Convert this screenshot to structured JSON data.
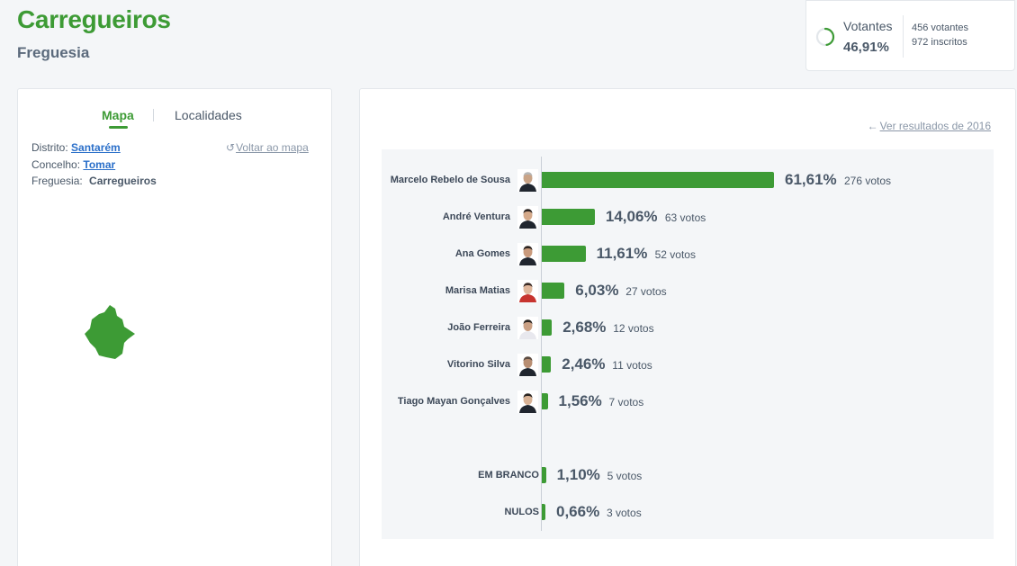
{
  "header": {
    "title": "Carregueiros",
    "subtitle": "Freguesia"
  },
  "turnout": {
    "label": "Votantes",
    "percent": "46,91%",
    "percent_value": 46.91,
    "voters": "456 votantes",
    "registered": "972 inscritos",
    "accent": "#3d9b35"
  },
  "map_panel": {
    "tabs": [
      "Mapa",
      "Localidades"
    ],
    "active_tab": "Mapa",
    "district_label": "Distrito:",
    "district": "Santarém",
    "municipality_label": "Concelho:",
    "municipality": "Tomar",
    "parish_label": "Freguesia:",
    "parish": "Carregueiros",
    "back_link": "Voltar ao mapa",
    "back_icon": "undo-icon",
    "map_color": "#3d9b35"
  },
  "results": {
    "previous_link": "Ver resultados de 2016",
    "previous_icon": "arrow-left-icon",
    "bar_color": "#3d9b35"
  },
  "chart_data": {
    "type": "bar",
    "orientation": "horizontal",
    "candidates": [
      {
        "name": "Marcelo Rebelo de Sousa",
        "percent": 61.61,
        "percent_label": "61,61%",
        "votes_label": "276 votos"
      },
      {
        "name": "André Ventura",
        "percent": 14.06,
        "percent_label": "14,06%",
        "votes_label": "63 votos"
      },
      {
        "name": "Ana Gomes",
        "percent": 11.61,
        "percent_label": "11,61%",
        "votes_label": "52 votos"
      },
      {
        "name": "Marisa Matias",
        "percent": 6.03,
        "percent_label": "6,03%",
        "votes_label": "27 votos"
      },
      {
        "name": "João Ferreira",
        "percent": 2.68,
        "percent_label": "2,68%",
        "votes_label": "12 votos"
      },
      {
        "name": "Vitorino Silva",
        "percent": 2.46,
        "percent_label": "2,46%",
        "votes_label": "11 votos"
      },
      {
        "name": "Tiago Mayan Gonçalves",
        "percent": 1.56,
        "percent_label": "1,56%",
        "votes_label": "7 votos"
      }
    ],
    "special": [
      {
        "name": "EM BRANCO",
        "percent": 1.1,
        "percent_label": "1,10%",
        "votes_label": "5 votos"
      },
      {
        "name": "NULOS",
        "percent": 0.66,
        "percent_label": "0,66%",
        "votes_label": "3 votos"
      }
    ]
  }
}
